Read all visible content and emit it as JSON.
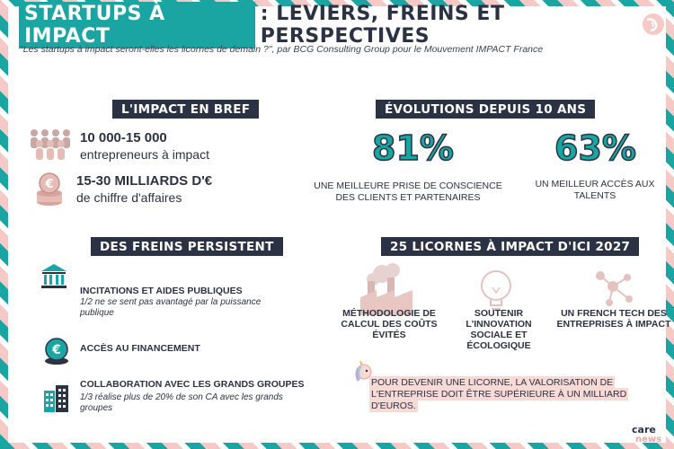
{
  "header": {
    "title_highlight": "STARTUPS À IMPACT",
    "title_rest": ": LEVIERS, FREINS ET PERSPECTIVES",
    "subtitle": "\"Les startups à impact seront-elles les licornes de demain ?\", par BCG Consulting Group pour le Mouvement IMPACT France"
  },
  "impact_en_bref": {
    "heading": "L'IMPACT EN BREF",
    "stat1_value": "10 000-15 000",
    "stat1_label": "entrepreneurs à impact",
    "stat2_value": "15-30 MILLIARDS D'€",
    "stat2_label": "de chiffre d'affaires"
  },
  "evolutions": {
    "heading": "ÉVOLUTIONS DEPUIS 10 ANS",
    "items": [
      {
        "value": "81%",
        "label": "UNE MEILLEURE PRISE DE CONSCIENCE DES CLIENTS ET PARTENAIRES"
      },
      {
        "value": "63%",
        "label": "UN MEILLEUR ACCÈS AUX TALENTS"
      }
    ]
  },
  "freins": {
    "heading": "DES FREINS PERSISTENT",
    "items": [
      {
        "title": "INCITATIONS ET AIDES PUBLIQUES",
        "desc": "1/2 ne se sent pas avantagé par la puissance publique",
        "icon": "bank-icon"
      },
      {
        "title": "ACCÈS AU FINANCEMENT",
        "desc": "",
        "icon": "euro-coin-icon"
      },
      {
        "title": "COLLABORATION AVEC LES GRANDS GROUPES",
        "desc": "1/3 réalise plus de 20% de son CA avec les grands groupes",
        "icon": "buildings-icon"
      }
    ]
  },
  "licornes": {
    "heading": "25 LICORNES À IMPACT D'ICI 2027",
    "items": [
      {
        "label": "MÉTHODOLOGIE DE CALCUL DES COÛTS ÉVITÉS",
        "icon": "factory-smoke-icon"
      },
      {
        "label": "SOUTENIR L'INNOVATION SOCIALE ET ÉCOLOGIQUE",
        "icon": "lightbulb-icon"
      },
      {
        "label": "UN FRENCH TECH DES ENTREPRISES À IMPACT",
        "icon": "network-icon"
      }
    ],
    "note": "POUR DEVENIR UNE LICORNE, LA VALORISATION DE L'ENTREPRISE DOIT ÊTRE SUPÉRIEURE À UN MILLIARD D'EUROS."
  },
  "brand": {
    "line1": "care",
    "line2": "news"
  },
  "colors": {
    "teal": "#1aa5a2",
    "navy": "#2b3243",
    "pink": "#f4c9c6"
  }
}
